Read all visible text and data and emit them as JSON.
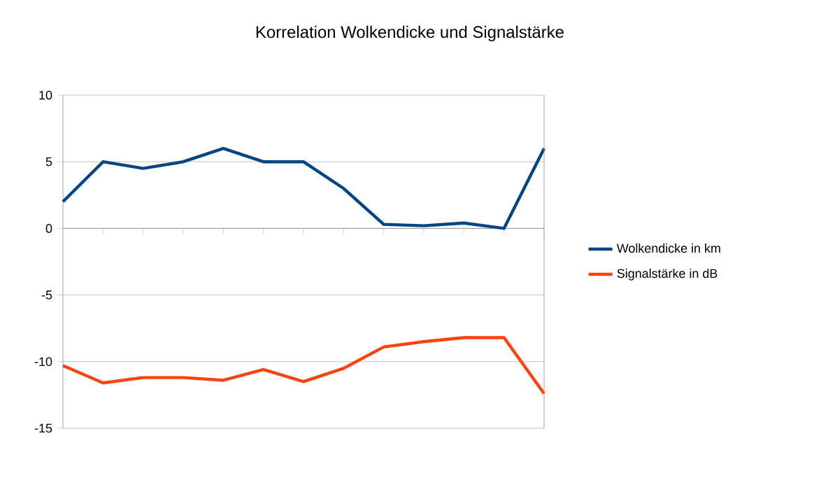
{
  "chart_data": {
    "type": "line",
    "title": "Korrelation Wolkendicke und Signalstärke",
    "categories": [
      null,
      null,
      null,
      null,
      null,
      null,
      null,
      null,
      null,
      null,
      null,
      null,
      null
    ],
    "series": [
      {
        "name": "Wolkendicke in km",
        "color": "#004586",
        "values": [
          2,
          5,
          4.5,
          5,
          6,
          5,
          5,
          3,
          0.3,
          0.2,
          0.4,
          0,
          6
        ]
      },
      {
        "name": "Signalstärke in dB",
        "color": "#ff420e",
        "values": [
          -10.3,
          -11.6,
          -11.2,
          -11.2,
          -11.4,
          -10.6,
          -11.5,
          -10.5,
          -8.9,
          -8.5,
          -8.2,
          -8.2,
          -12.4
        ]
      }
    ],
    "ylim": [
      -15,
      10
    ],
    "yticks": [
      -15,
      -10,
      -5,
      0,
      5,
      10
    ],
    "grid": "y",
    "legend": "right",
    "marker": "none",
    "line_style": "solid"
  }
}
